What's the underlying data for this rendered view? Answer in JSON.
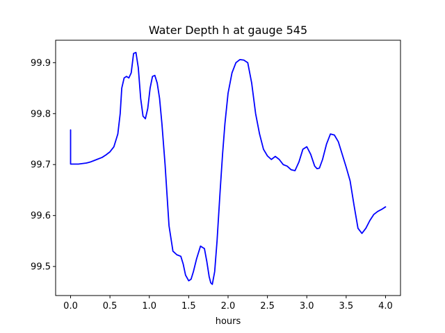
{
  "chart_data": {
    "type": "line",
    "title": "Water Depth h at gauge 545",
    "xlabel": "hours",
    "ylabel": "",
    "xlim": [
      -0.19,
      4.19
    ],
    "ylim": [
      99.443,
      99.944
    ],
    "xticks": [
      0.0,
      0.5,
      1.0,
      1.5,
      2.0,
      2.5,
      3.0,
      3.5,
      4.0
    ],
    "xtick_labels": [
      "0.0",
      "0.5",
      "1.0",
      "1.5",
      "2.0",
      "2.5",
      "3.0",
      "3.5",
      "4.0"
    ],
    "yticks": [
      99.5,
      99.6,
      99.7,
      99.8,
      99.9
    ],
    "ytick_labels": [
      "99.5",
      "99.6",
      "99.7",
      "99.8",
      "99.9"
    ],
    "grid": false,
    "colors": {
      "line": "#0000ff",
      "axes": "#000000",
      "background": "#ffffff"
    },
    "series": [
      {
        "x": [
          0.0,
          0.0,
          0.05,
          0.1,
          0.15,
          0.2,
          0.25,
          0.3,
          0.35,
          0.4,
          0.45,
          0.5,
          0.55,
          0.6,
          0.63,
          0.65,
          0.68,
          0.71,
          0.74,
          0.77,
          0.8,
          0.83,
          0.86,
          0.89,
          0.92,
          0.95,
          0.98,
          1.01,
          1.04,
          1.07,
          1.1,
          1.13,
          1.16,
          1.2,
          1.25,
          1.3,
          1.35,
          1.4,
          1.43,
          1.46,
          1.5,
          1.53,
          1.56,
          1.6,
          1.65,
          1.7,
          1.73,
          1.76,
          1.78,
          1.8,
          1.83,
          1.86,
          1.9,
          1.93,
          1.96,
          2.0,
          2.05,
          2.1,
          2.15,
          2.2,
          2.25,
          2.3,
          2.35,
          2.4,
          2.45,
          2.5,
          2.55,
          2.6,
          2.65,
          2.7,
          2.75,
          2.8,
          2.85,
          2.9,
          2.95,
          3.0,
          3.05,
          3.1,
          3.13,
          3.16,
          3.2,
          3.25,
          3.3,
          3.35,
          3.4,
          3.45,
          3.5,
          3.55,
          3.6,
          3.65,
          3.7,
          3.75,
          3.8,
          3.85,
          3.9,
          3.95,
          4.0
        ],
        "y": [
          99.768,
          99.701,
          99.701,
          99.701,
          99.702,
          99.703,
          99.705,
          99.708,
          99.711,
          99.714,
          99.719,
          99.725,
          99.735,
          99.76,
          99.8,
          99.85,
          99.87,
          99.873,
          99.87,
          99.88,
          99.918,
          99.92,
          99.89,
          99.83,
          99.795,
          99.79,
          99.81,
          99.85,
          99.873,
          99.875,
          99.86,
          99.83,
          99.78,
          99.7,
          99.58,
          99.53,
          99.523,
          99.52,
          99.505,
          99.483,
          99.472,
          99.475,
          99.49,
          99.515,
          99.54,
          99.535,
          99.51,
          99.48,
          99.468,
          99.465,
          99.49,
          99.55,
          99.65,
          99.72,
          99.78,
          99.84,
          99.88,
          99.9,
          99.906,
          99.905,
          99.9,
          99.86,
          99.8,
          99.76,
          99.73,
          99.717,
          99.71,
          99.716,
          99.71,
          99.7,
          99.697,
          99.69,
          99.688,
          99.705,
          99.73,
          99.735,
          99.72,
          99.697,
          99.692,
          99.693,
          99.71,
          99.74,
          99.76,
          99.758,
          99.745,
          99.72,
          99.695,
          99.668,
          99.62,
          99.575,
          99.565,
          99.575,
          99.59,
          99.602,
          99.608,
          99.612,
          99.617
        ]
      }
    ]
  }
}
